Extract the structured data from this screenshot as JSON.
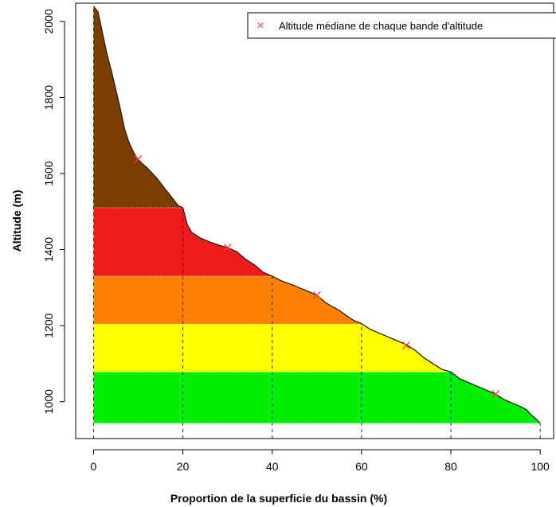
{
  "chart_data": {
    "type": "area",
    "xlabel": "Proportion de la superficie du bassin (%)",
    "ylabel": "Altitude (m)",
    "xlim": [
      -4,
      103
    ],
    "ylim": [
      903,
      2048
    ],
    "x_ticks": [
      0,
      20,
      40,
      60,
      80,
      100
    ],
    "y_ticks": [
      1000,
      1200,
      1400,
      1600,
      1800,
      2000
    ],
    "legend": {
      "position": "top-right",
      "marker": "×",
      "label": "Altitude médiane de chaque bande d'altitude"
    },
    "curve": {
      "x": [
        0,
        1,
        2,
        3,
        4,
        5,
        6,
        7,
        8,
        9,
        10,
        12,
        14,
        16,
        18,
        19,
        20,
        21,
        22,
        24,
        26,
        28,
        30,
        32,
        34,
        36,
        38,
        40,
        42,
        45,
        48,
        50,
        52,
        55,
        58,
        60,
        62,
        65,
        68,
        70,
        72,
        74,
        76,
        78,
        80,
        82,
        84,
        86,
        88,
        90,
        92,
        94,
        96,
        97,
        98,
        99,
        100
      ],
      "y": [
        2040,
        2025,
        1970,
        1915,
        1870,
        1820,
        1770,
        1715,
        1680,
        1655,
        1635,
        1615,
        1590,
        1560,
        1530,
        1515,
        1510,
        1465,
        1445,
        1430,
        1420,
        1412,
        1405,
        1395,
        1375,
        1360,
        1340,
        1330,
        1318,
        1305,
        1290,
        1280,
        1260,
        1240,
        1215,
        1205,
        1190,
        1175,
        1160,
        1150,
        1135,
        1115,
        1100,
        1085,
        1078,
        1060,
        1050,
        1040,
        1030,
        1020,
        1005,
        995,
        985,
        978,
        965,
        955,
        943
      ]
    },
    "bands": [
      {
        "from": 943,
        "to": 1078,
        "color": "#00ee00"
      },
      {
        "from": 1078,
        "to": 1204,
        "color": "#ffff00"
      },
      {
        "from": 1204,
        "to": 1330,
        "color": "#ff7f00"
      },
      {
        "from": 1330,
        "to": 1510,
        "color": "#ee1c1c"
      },
      {
        "from": 1510,
        "to": 2040,
        "color": "#7a3e00"
      }
    ],
    "band_boundaries_x": [
      0,
      20,
      40,
      60,
      80,
      100
    ],
    "medians": {
      "x": [
        10,
        30,
        50,
        70,
        90
      ],
      "y": [
        1638,
        1405,
        1280,
        1148,
        1020
      ],
      "color": "#ff4040"
    },
    "boundary_line_color": "#1f1fe0"
  }
}
